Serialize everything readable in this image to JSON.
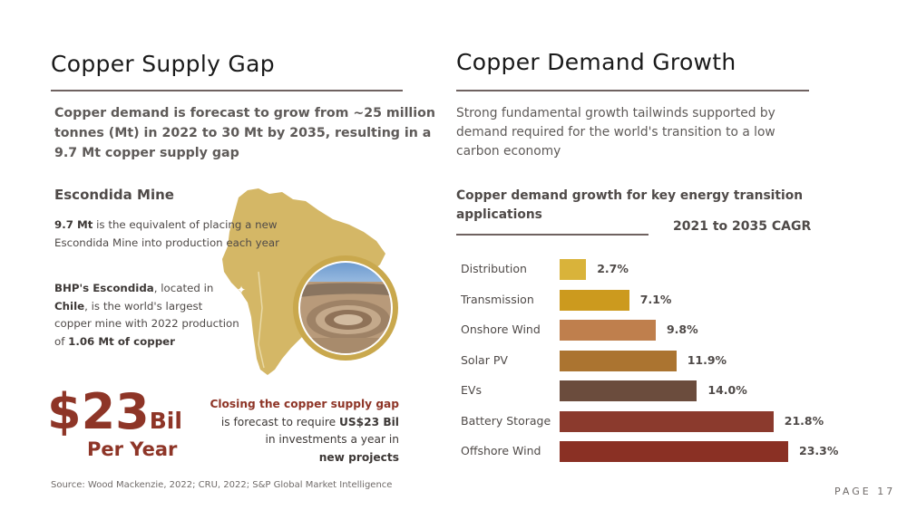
{
  "left": {
    "heading": "Copper Supply Gap",
    "lead": "Copper demand is forecast to grow from ~25 million tonnes (Mt) in 2022 to 30 Mt by 2035, resulting in a 9.7 Mt copper supply gap",
    "mine_title": "Escondida Mine",
    "p1_bold": "9.7 Mt",
    "p1_rest": " is the equivalent of placing a new Escondida Mine into production each year",
    "p2": {
      "b1": "BHP's Escondida",
      "t1": ", located in ",
      "b2": "Chile",
      "t2": ", is the world's largest copper mine with 2022 production of ",
      "b3": "1.06 Mt of copper"
    },
    "big_value": "$23",
    "big_unit": "Bil",
    "per_year": "Per Year",
    "closing": {
      "l1": "Closing the copper supply gap",
      "l2a": "is forecast to require ",
      "l2b": "US$23 Bil",
      "l3": "in  investments a year in",
      "l4a": "new project",
      "l4b": "s"
    },
    "source": "Source:  Wood Mackenzie, 2022; CRU, 2022; S&P Global Market Intelligence"
  },
  "right": {
    "heading": "Copper Demand Growth",
    "lead": "Strong fundamental growth tailwinds supported by demand required for the world's transition to a low carbon economy"
  },
  "page_label": "PAGE 17",
  "chart_data": {
    "type": "bar",
    "orientation": "horizontal",
    "title": "Copper demand growth for key energy transition applications",
    "subtitle": "2021 to 2035 CAGR",
    "categories": [
      "Distribution",
      "Transmission",
      "Onshore Wind",
      "Solar PV",
      "EVs",
      "Battery Storage",
      "Offshore Wind"
    ],
    "values": [
      2.7,
      7.1,
      9.8,
      11.9,
      14.0,
      21.8,
      23.3
    ],
    "labels": [
      "2.7%",
      "7.1%",
      "9.8%",
      "11.9%",
      "14.0%",
      "21.8%",
      "23.3%"
    ],
    "colors": [
      "#d9b33a",
      "#cc9a1e",
      "#bf7f4d",
      "#ab7430",
      "#6b4c3d",
      "#8b3a2d",
      "#8a3024"
    ],
    "xlim": [
      0,
      23.3
    ],
    "grid": false,
    "legend": "none"
  },
  "colors": {
    "accent": "#8e3527",
    "map_fill": "#d4b766",
    "photo_ring": "#c9a84d"
  }
}
